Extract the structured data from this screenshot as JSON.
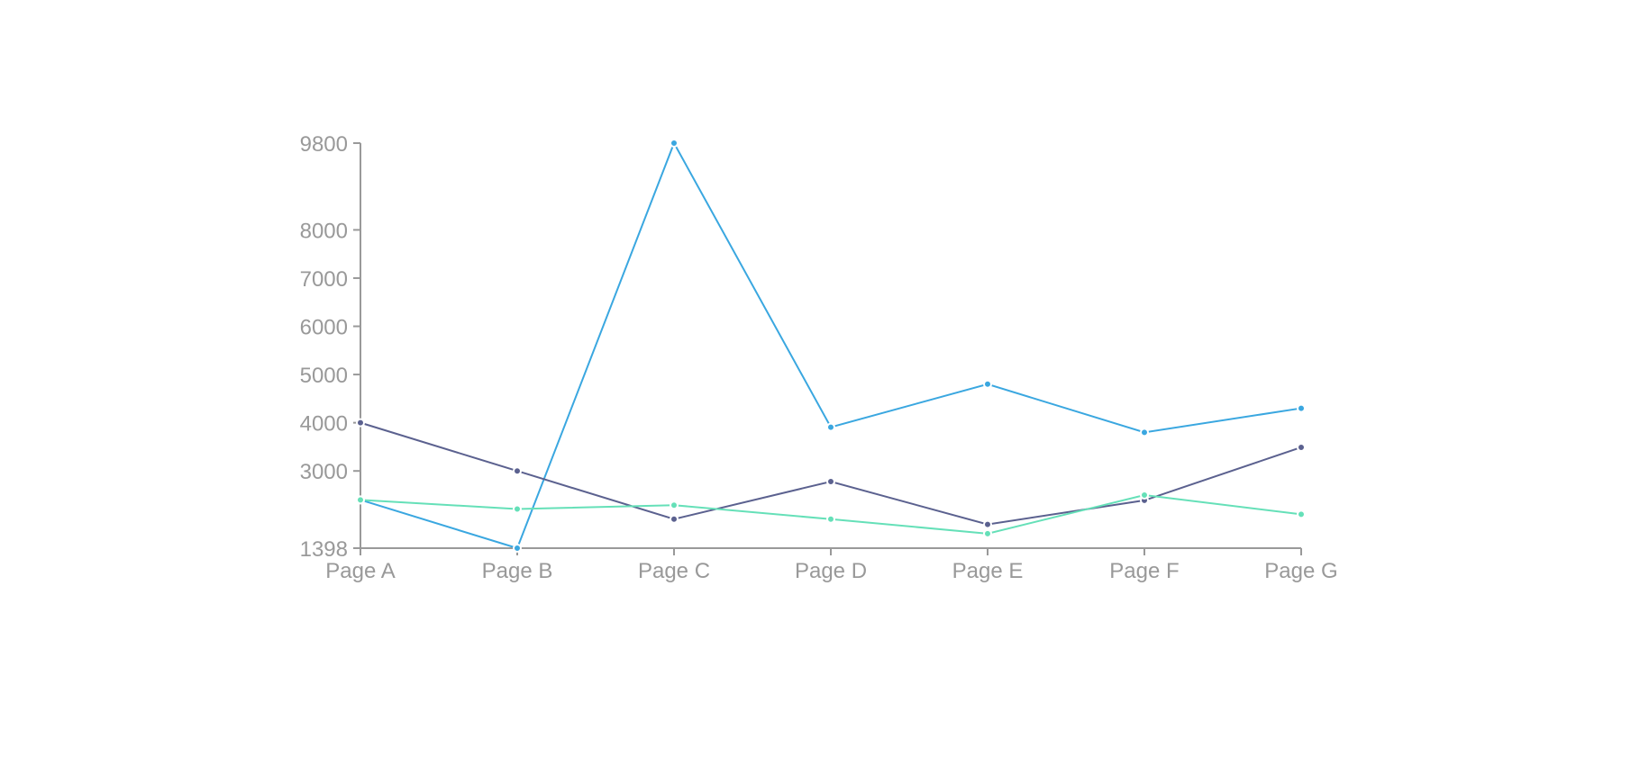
{
  "chart_data": {
    "type": "line",
    "categories": [
      "Page A",
      "Page B",
      "Page C",
      "Page D",
      "Page E",
      "Page F",
      "Page G"
    ],
    "ylim": [
      1398,
      9800
    ],
    "yticks": [
      1398,
      3000,
      4000,
      5000,
      6000,
      7000,
      8000,
      9800
    ],
    "grid": false,
    "series": [
      {
        "color": "#3aa7e0",
        "values": [
          2400,
          1398,
          9800,
          3908,
          4800,
          3800,
          4300
        ]
      },
      {
        "color": "#5b618f",
        "values": [
          4000,
          3000,
          2000,
          2780,
          1890,
          2390,
          3490
        ]
      },
      {
        "color": "#65e0b8",
        "values": [
          2400,
          2210,
          2290,
          2000,
          1700,
          2500,
          2100
        ]
      }
    ]
  }
}
